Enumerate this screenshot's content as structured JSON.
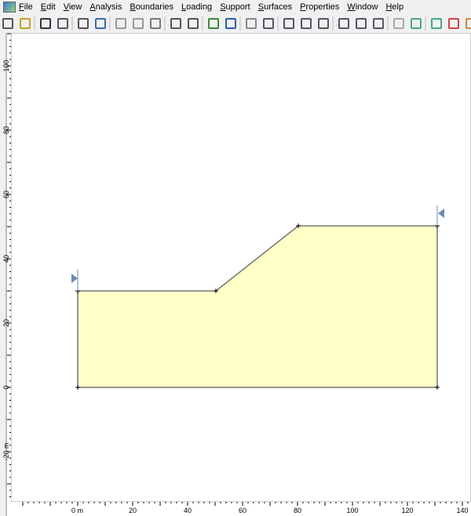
{
  "menu": {
    "items": [
      "File",
      "Edit",
      "View",
      "Analysis",
      "Boundaries",
      "Loading",
      "Support",
      "Surfaces",
      "Properties",
      "Window",
      "Help"
    ]
  },
  "rulers": {
    "bottom": [
      "0 m",
      "20",
      "40",
      "60",
      "80",
      "100",
      "120",
      "140"
    ],
    "left": [
      "100",
      "80",
      "60",
      "40",
      "20",
      "0",
      "-20 m"
    ]
  }
}
